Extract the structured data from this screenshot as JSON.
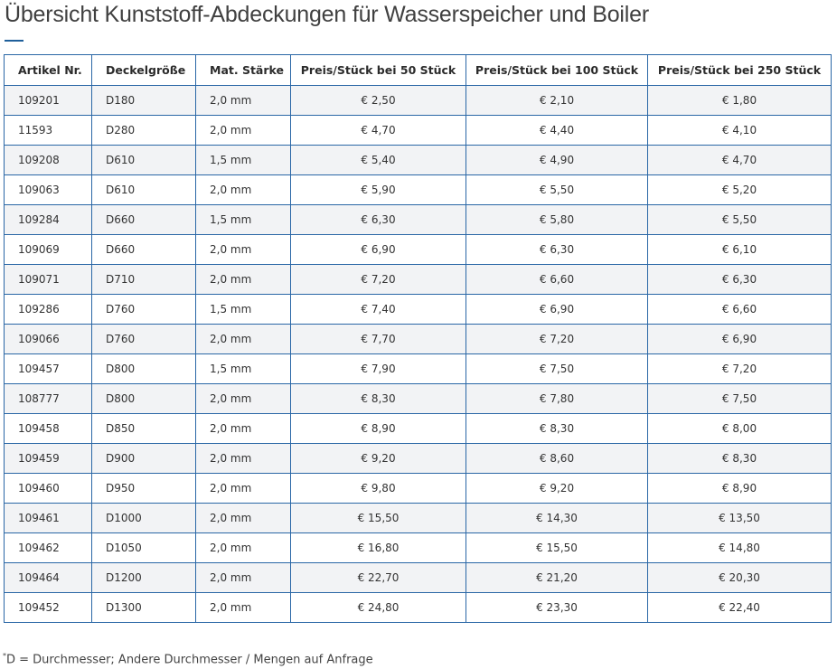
{
  "page": {
    "title": "Übersicht Kunststoff-Abdeckungen für Wasserspeicher und Boiler",
    "footnote_mark": "*",
    "footnote_text": "D = Durchmesser; Andere Durchmesser / Mengen auf Anfrage"
  },
  "table": {
    "headers": [
      "Artikel Nr.",
      "Deckelgröße",
      "Mat. Stärke",
      "Preis/Stück bei 50 Stück",
      "Preis/Stück bei 100 Stück",
      "Preis/Stück bei 250 Stück"
    ],
    "rows": [
      [
        "109201",
        "D180",
        "2,0 mm",
        "€ 2,50",
        "€ 2,10",
        "€ 1,80"
      ],
      [
        "11593",
        "D280",
        "2,0 mm",
        "€ 4,70",
        "€ 4,40",
        "€ 4,10"
      ],
      [
        "109208",
        "D610",
        "1,5 mm",
        "€ 5,40",
        "€ 4,90",
        "€ 4,70"
      ],
      [
        "109063",
        "D610",
        "2,0 mm",
        "€ 5,90",
        "€ 5,50",
        "€ 5,20"
      ],
      [
        "109284",
        "D660",
        "1,5 mm",
        "€ 6,30",
        "€ 5,80",
        "€ 5,50"
      ],
      [
        "109069",
        "D660",
        "2,0 mm",
        "€ 6,90",
        "€ 6,30",
        "€ 6,10"
      ],
      [
        "109071",
        "D710",
        "2,0 mm",
        "€ 7,20",
        "€ 6,60",
        "€ 6,30"
      ],
      [
        "109286",
        "D760",
        "1,5 mm",
        "€ 7,40",
        "€ 6,90",
        "€ 6,60"
      ],
      [
        "109066",
        "D760",
        "2,0 mm",
        "€ 7,70",
        "€ 7,20",
        "€ 6,90"
      ],
      [
        "109457",
        "D800",
        "1,5 mm",
        "€ 7,90",
        "€ 7,50",
        "€ 7,20"
      ],
      [
        "108777",
        "D800",
        "2,0 mm",
        "€ 8,30",
        "€ 7,80",
        "€ 7,50"
      ],
      [
        "109458",
        "D850",
        "2,0 mm",
        "€ 8,90",
        "€ 8,30",
        "€ 8,00"
      ],
      [
        "109459",
        "D900",
        "2,0 mm",
        "€ 9,20",
        "€ 8,60",
        "€ 8,30"
      ],
      [
        "109460",
        "D950",
        "2,0 mm",
        "€ 9,80",
        "€ 9,20",
        "€ 8,90"
      ],
      [
        "109461",
        "D1000",
        "2,0 mm",
        "€ 15,50",
        "€ 14,30",
        "€ 13,50"
      ],
      [
        "109462",
        "D1050",
        "2,0 mm",
        "€ 16,80",
        "€ 15,50",
        "€ 14,80"
      ],
      [
        "109464",
        "D1200",
        "2,0 mm",
        "€ 22,70",
        "€ 21,20",
        "€ 20,30"
      ],
      [
        "109452",
        "D1300",
        "2,0 mm",
        "€ 24,80",
        "€ 23,30",
        "€ 22,40"
      ]
    ]
  },
  "colors": {
    "border": "#2a67a6",
    "accent_underline": "#1f5f9a",
    "stripe": "#f2f3f5"
  }
}
